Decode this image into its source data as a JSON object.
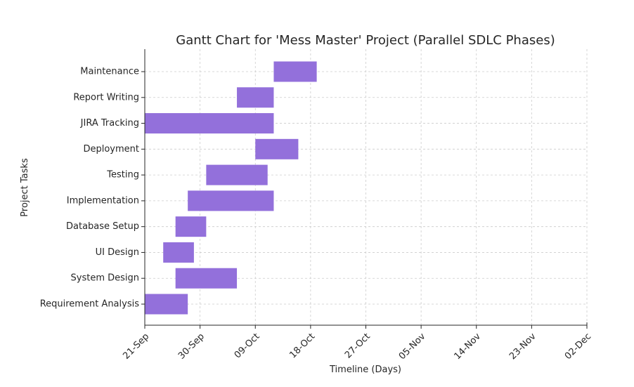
{
  "chart_data": {
    "type": "gantt",
    "title": "Gantt Chart for 'Mess Master' Project (Parallel SDLC Phases)",
    "xlabel": "Timeline (Days)",
    "ylabel": "Project Tasks",
    "bar_color": "#9370DB",
    "grid": true,
    "x_range": [
      "2024-09-21",
      "2024-12-02"
    ],
    "x_ticks": [
      {
        "date": "2024-09-21",
        "label": "21-Sep"
      },
      {
        "date": "2024-09-30",
        "label": "30-Sep"
      },
      {
        "date": "2024-10-09",
        "label": "09-Oct"
      },
      {
        "date": "2024-10-18",
        "label": "18-Oct"
      },
      {
        "date": "2024-10-27",
        "label": "27-Oct"
      },
      {
        "date": "2024-11-05",
        "label": "05-Nov"
      },
      {
        "date": "2024-11-14",
        "label": "14-Nov"
      },
      {
        "date": "2024-11-23",
        "label": "23-Nov"
      },
      {
        "date": "2024-12-02",
        "label": "02-Dec"
      }
    ],
    "tasks": [
      {
        "name": "Requirement Analysis",
        "start": "2024-09-21",
        "end": "2024-09-28"
      },
      {
        "name": "System Design",
        "start": "2024-09-26",
        "end": "2024-10-06"
      },
      {
        "name": "UI Design",
        "start": "2024-09-24",
        "end": "2024-09-29"
      },
      {
        "name": "Database Setup",
        "start": "2024-09-26",
        "end": "2024-10-01"
      },
      {
        "name": "Implementation",
        "start": "2024-09-28",
        "end": "2024-10-12"
      },
      {
        "name": "Testing",
        "start": "2024-10-01",
        "end": "2024-10-11"
      },
      {
        "name": "Deployment",
        "start": "2024-10-09",
        "end": "2024-10-16"
      },
      {
        "name": "JIRA Tracking",
        "start": "2024-09-21",
        "end": "2024-10-12"
      },
      {
        "name": "Report Writing",
        "start": "2024-10-06",
        "end": "2024-10-12"
      },
      {
        "name": "Maintenance",
        "start": "2024-10-12",
        "end": "2024-10-19"
      }
    ]
  }
}
